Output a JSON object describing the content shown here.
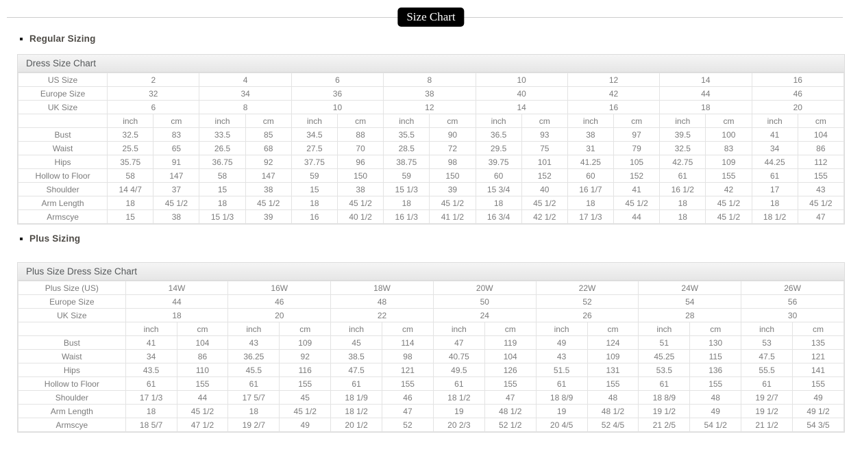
{
  "page": {
    "title_badge": "Size Chart"
  },
  "colors": {
    "badge_bg": "#000000",
    "badge_text": "#ffffff",
    "table_border": "#e3e3e3",
    "header_bar_bg": "#ebebeb",
    "cell_text": "#7b7b7b",
    "heading_text": "#4e4b46",
    "divider_line": "#cccccc"
  },
  "sections": [
    {
      "heading": "Regular Sizing",
      "table": {
        "title": "Dress Size Chart",
        "unit_headers": [
          "inch",
          "cm"
        ],
        "size_rows": [
          {
            "label": "US Size",
            "values": [
              "2",
              "4",
              "6",
              "8",
              "10",
              "12",
              "14",
              "16"
            ]
          },
          {
            "label": "Europe Size",
            "values": [
              "32",
              "34",
              "36",
              "38",
              "40",
              "42",
              "44",
              "46"
            ]
          },
          {
            "label": "UK Size",
            "values": [
              "6",
              "8",
              "10",
              "12",
              "14",
              "16",
              "18",
              "20"
            ]
          }
        ],
        "measurement_rows": [
          {
            "label": "Bust",
            "values": [
              [
                "32.5",
                "83"
              ],
              [
                "33.5",
                "85"
              ],
              [
                "34.5",
                "88"
              ],
              [
                "35.5",
                "90"
              ],
              [
                "36.5",
                "93"
              ],
              [
                "38",
                "97"
              ],
              [
                "39.5",
                "100"
              ],
              [
                "41",
                "104"
              ]
            ]
          },
          {
            "label": "Waist",
            "values": [
              [
                "25.5",
                "65"
              ],
              [
                "26.5",
                "68"
              ],
              [
                "27.5",
                "70"
              ],
              [
                "28.5",
                "72"
              ],
              [
                "29.5",
                "75"
              ],
              [
                "31",
                "79"
              ],
              [
                "32.5",
                "83"
              ],
              [
                "34",
                "86"
              ]
            ]
          },
          {
            "label": "Hips",
            "values": [
              [
                "35.75",
                "91"
              ],
              [
                "36.75",
                "92"
              ],
              [
                "37.75",
                "96"
              ],
              [
                "38.75",
                "98"
              ],
              [
                "39.75",
                "101"
              ],
              [
                "41.25",
                "105"
              ],
              [
                "42.75",
                "109"
              ],
              [
                "44.25",
                "112"
              ]
            ]
          },
          {
            "label": "Hollow to Floor",
            "values": [
              [
                "58",
                "147"
              ],
              [
                "58",
                "147"
              ],
              [
                "59",
                "150"
              ],
              [
                "59",
                "150"
              ],
              [
                "60",
                "152"
              ],
              [
                "60",
                "152"
              ],
              [
                "61",
                "155"
              ],
              [
                "61",
                "155"
              ]
            ]
          },
          {
            "label": "Shoulder",
            "values": [
              [
                "14 4/7",
                "37"
              ],
              [
                "15",
                "38"
              ],
              [
                "15",
                "38"
              ],
              [
                "15 1/3",
                "39"
              ],
              [
                "15 3/4",
                "40"
              ],
              [
                "16 1/7",
                "41"
              ],
              [
                "16 1/2",
                "42"
              ],
              [
                "17",
                "43"
              ]
            ]
          },
          {
            "label": "Arm Length",
            "values": [
              [
                "18",
                "45 1/2"
              ],
              [
                "18",
                "45 1/2"
              ],
              [
                "18",
                "45 1/2"
              ],
              [
                "18",
                "45 1/2"
              ],
              [
                "18",
                "45 1/2"
              ],
              [
                "18",
                "45 1/2"
              ],
              [
                "18",
                "45 1/2"
              ],
              [
                "18",
                "45 1/2"
              ]
            ]
          },
          {
            "label": "Armscye",
            "values": [
              [
                "15",
                "38"
              ],
              [
                "15 1/3",
                "39"
              ],
              [
                "16",
                "40 1/2"
              ],
              [
                "16 1/3",
                "41 1/2"
              ],
              [
                "16 3/4",
                "42 1/2"
              ],
              [
                "17 1/3",
                "44"
              ],
              [
                "18",
                "45 1/2"
              ],
              [
                "18 1/2",
                "47"
              ]
            ]
          }
        ]
      }
    },
    {
      "heading": "Plus Sizing",
      "table": {
        "title": "Plus Size Dress Size Chart",
        "unit_headers": [
          "inch",
          "cm"
        ],
        "size_rows": [
          {
            "label": "Plus Size (US)",
            "values": [
              "14W",
              "16W",
              "18W",
              "20W",
              "22W",
              "24W",
              "26W"
            ]
          },
          {
            "label": "Europe Size",
            "values": [
              "44",
              "46",
              "48",
              "50",
              "52",
              "54",
              "56"
            ]
          },
          {
            "label": "UK Size",
            "values": [
              "18",
              "20",
              "22",
              "24",
              "26",
              "28",
              "30"
            ]
          }
        ],
        "measurement_rows": [
          {
            "label": "Bust",
            "values": [
              [
                "41",
                "104"
              ],
              [
                "43",
                "109"
              ],
              [
                "45",
                "114"
              ],
              [
                "47",
                "119"
              ],
              [
                "49",
                "124"
              ],
              [
                "51",
                "130"
              ],
              [
                "53",
                "135"
              ]
            ]
          },
          {
            "label": "Waist",
            "values": [
              [
                "34",
                "86"
              ],
              [
                "36.25",
                "92"
              ],
              [
                "38.5",
                "98"
              ],
              [
                "40.75",
                "104"
              ],
              [
                "43",
                "109"
              ],
              [
                "45.25",
                "115"
              ],
              [
                "47.5",
                "121"
              ]
            ]
          },
          {
            "label": "Hips",
            "values": [
              [
                "43.5",
                "110"
              ],
              [
                "45.5",
                "116"
              ],
              [
                "47.5",
                "121"
              ],
              [
                "49.5",
                "126"
              ],
              [
                "51.5",
                "131"
              ],
              [
                "53.5",
                "136"
              ],
              [
                "55.5",
                "141"
              ]
            ]
          },
          {
            "label": "Hollow to Floor",
            "values": [
              [
                "61",
                "155"
              ],
              [
                "61",
                "155"
              ],
              [
                "61",
                "155"
              ],
              [
                "61",
                "155"
              ],
              [
                "61",
                "155"
              ],
              [
                "61",
                "155"
              ],
              [
                "61",
                "155"
              ]
            ]
          },
          {
            "label": "Shoulder",
            "values": [
              [
                "17 1/3",
                "44"
              ],
              [
                "17 5/7",
                "45"
              ],
              [
                "18 1/9",
                "46"
              ],
              [
                "18 1/2",
                "47"
              ],
              [
                "18 8/9",
                "48"
              ],
              [
                "18 8/9",
                "48"
              ],
              [
                "19 2/7",
                "49"
              ]
            ]
          },
          {
            "label": "Arm Length",
            "values": [
              [
                "18",
                "45 1/2"
              ],
              [
                "18",
                "45 1/2"
              ],
              [
                "18 1/2",
                "47"
              ],
              [
                "19",
                "48 1/2"
              ],
              [
                "19",
                "48 1/2"
              ],
              [
                "19 1/2",
                "49"
              ],
              [
                "19 1/2",
                "49 1/2"
              ]
            ]
          },
          {
            "label": "Armscye",
            "values": [
              [
                "18 5/7",
                "47 1/2"
              ],
              [
                "19 2/7",
                "49"
              ],
              [
                "20 1/2",
                "52"
              ],
              [
                "20 2/3",
                "52 1/2"
              ],
              [
                "20 4/5",
                "52 4/5"
              ],
              [
                "21 2/5",
                "54 1/2"
              ],
              [
                "21 1/2",
                "54 3/5"
              ]
            ]
          }
        ]
      }
    }
  ]
}
